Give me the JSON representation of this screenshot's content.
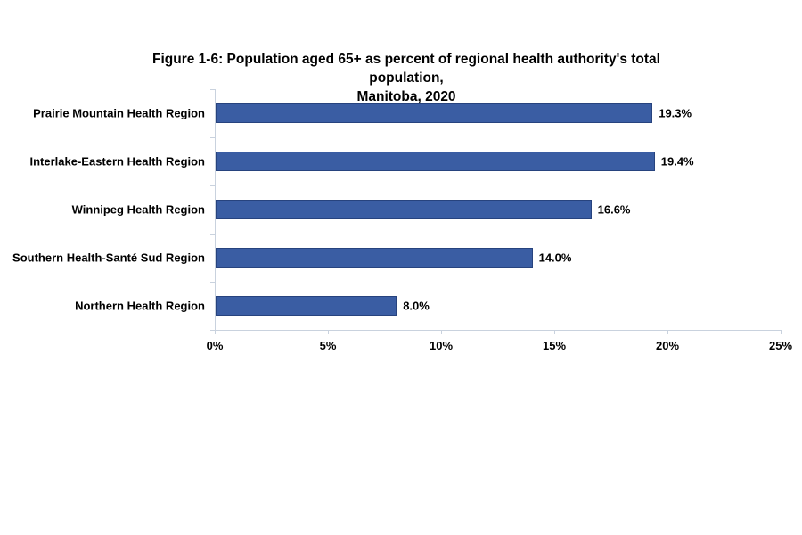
{
  "chart_data": {
    "type": "bar",
    "orientation": "horizontal",
    "title": "Figure 1-6: Population aged 65+ as percent of regional health authority's total population, Manitoba, 2020",
    "title_lines": [
      "Figure 1-6: Population aged 65+ as percent of regional health authority's total population,",
      "Manitoba, 2020"
    ],
    "categories": [
      "Prairie Mountain Health Region",
      "Interlake-Eastern Health Region",
      "Winnipeg Health Region",
      "Southern Health-Santé Sud Region",
      "Northern Health Region"
    ],
    "values": [
      19.3,
      19.4,
      16.6,
      14.0,
      8.0
    ],
    "data_labels": [
      "19.3%",
      "19.4%",
      "16.6%",
      "14.0%",
      "8.0%"
    ],
    "x_ticks": [
      "0%",
      "5%",
      "10%",
      "15%",
      "20%",
      "25%"
    ],
    "x_tick_values": [
      0,
      5,
      10,
      15,
      20,
      25
    ],
    "xlim": [
      0,
      25
    ],
    "xlabel": "",
    "ylabel": "",
    "legend": "none",
    "grid": false,
    "colors": {
      "bar_fill": "#3A5DA3",
      "bar_border": "#27437E",
      "axis_line": "#C9D2DE",
      "text": "#000000",
      "background": "#FFFFFF"
    }
  }
}
